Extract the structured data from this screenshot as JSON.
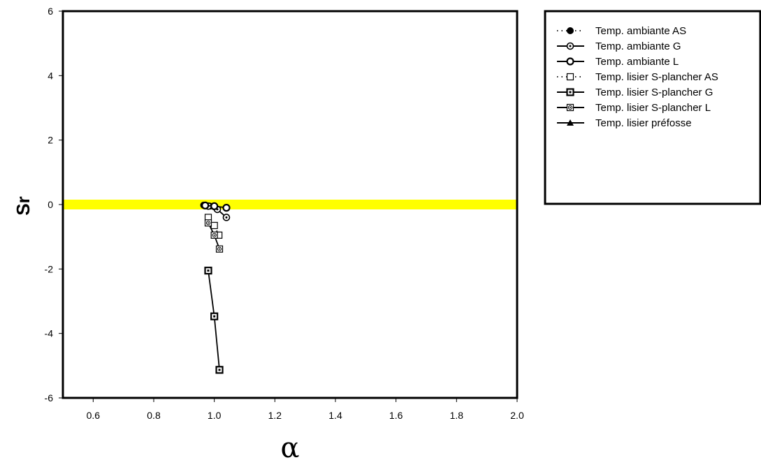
{
  "chart_data": {
    "type": "line",
    "title": "",
    "xlabel": "α",
    "ylabel": "Sr",
    "xlim": [
      0.5,
      2.0
    ],
    "ylim": [
      -6,
      6
    ],
    "xticks": [
      "0.6",
      "0.8",
      "1.0",
      "1.2",
      "1.4",
      "1.6",
      "1.8",
      "2.0"
    ],
    "yticks": [
      "-6",
      "-4",
      "-2",
      "0",
      "2",
      "4",
      "6"
    ],
    "grid": false,
    "legend_position": "top-right, outside plot",
    "reference_band": {
      "y": 0,
      "color": "#ffff00"
    },
    "series": [
      {
        "name": "Temp. ambiante AS",
        "line": "dotted",
        "marker": "filled-circle",
        "x": [
          0.965,
          0.985,
          1.0
        ],
        "y": [
          -0.02,
          -0.05,
          -0.07
        ]
      },
      {
        "name": "Temp. ambiante G",
        "line": "solid",
        "marker": "dotted-circle",
        "x": [
          0.98,
          1.01,
          1.04
        ],
        "y": [
          -0.05,
          -0.15,
          -0.4
        ]
      },
      {
        "name": "Temp. ambiante L",
        "line": "solid",
        "marker": "open-circle",
        "x": [
          0.97,
          1.0,
          1.04
        ],
        "y": [
          -0.03,
          -0.05,
          -0.1
        ]
      },
      {
        "name": "Temp. lisier S-plancher AS",
        "line": "dotted",
        "marker": "open-square",
        "x": [
          0.98,
          1.0,
          1.015
        ],
        "y": [
          -0.4,
          -0.65,
          -0.95
        ]
      },
      {
        "name": "Temp. lisier S-plancher G",
        "line": "solid",
        "marker": "dotted-square",
        "x": [
          0.98,
          1.0,
          1.017
        ],
        "y": [
          -2.05,
          -3.47,
          -5.13
        ]
      },
      {
        "name": "Temp. lisier S-plancher L",
        "line": "solid",
        "marker": "dotted-circle-square",
        "x": [
          0.98,
          1.0,
          1.017
        ],
        "y": [
          -0.57,
          -0.95,
          -1.38
        ]
      },
      {
        "name": "Temp. lisier préfosse",
        "line": "solid",
        "marker": "filled-triangle",
        "x": [],
        "y": []
      }
    ]
  }
}
